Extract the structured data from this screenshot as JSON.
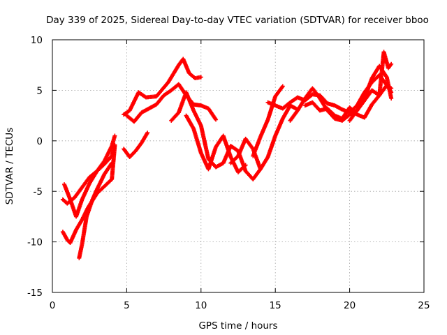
{
  "chart_data": {
    "type": "scatter",
    "title": "Day 339 of 2025, Sidereal Day-to-day VTEC variation (SDTVAR) for receiver bboo",
    "xlabel": "GPS time / hours",
    "ylabel": "SDTVAR / TECUs",
    "xlim": [
      0,
      25
    ],
    "ylim": [
      -15,
      10
    ],
    "xticks": [
      0,
      5,
      10,
      15,
      20,
      25
    ],
    "yticks": [
      -15,
      -10,
      -5,
      0,
      5,
      10
    ],
    "xtick_labels": [
      "0",
      "5",
      "10",
      "15",
      "20",
      "25"
    ],
    "ytick_labels": [
      "-15",
      "-10",
      "-5",
      "0",
      "5",
      "10"
    ],
    "grid": true,
    "marker": "+",
    "color": "#ff0000",
    "series": [
      {
        "x": [
          0.8,
          1.2,
          1.6,
          2.0,
          2.5,
          3.0,
          3.5,
          4.0,
          4.2
        ],
        "y": [
          -4.3,
          -5.8,
          -7.5,
          -5.8,
          -4.2,
          -3.0,
          -2.3,
          -1.5,
          -0.4
        ]
      },
      {
        "x": [
          0.7,
          1.0,
          1.5,
          2.0,
          2.5,
          3.0,
          3.5,
          4.0,
          4.2
        ],
        "y": [
          -5.8,
          -6.2,
          -5.6,
          -4.6,
          -3.6,
          -3.0,
          -2.0,
          -0.5,
          0.5
        ]
      },
      {
        "x": [
          0.7,
          1.0,
          1.2,
          1.6,
          2.0,
          2.4,
          3.0,
          3.5,
          4.0,
          4.2
        ],
        "y": [
          -9.0,
          -9.8,
          -10.1,
          -8.8,
          -7.8,
          -6.6,
          -5.2,
          -4.5,
          -3.8,
          -0.5
        ]
      },
      {
        "x": [
          1.8,
          2.0,
          2.3,
          2.7,
          3.0,
          3.5,
          4.0
        ],
        "y": [
          -11.6,
          -10.2,
          -7.5,
          -5.8,
          -4.8,
          -3.3,
          -2.2
        ]
      },
      {
        "x": [
          4.8,
          5.2,
          5.8,
          6.3,
          7.0,
          7.8,
          8.5,
          8.8,
          9.2,
          9.6,
          10.0
        ],
        "y": [
          2.6,
          3.0,
          4.8,
          4.3,
          4.4,
          5.8,
          7.5,
          8.1,
          6.7,
          6.2,
          6.3
        ]
      },
      {
        "x": [
          5.0,
          5.5,
          6.0,
          6.5,
          7.0,
          7.5,
          8.0,
          8.5,
          9.0,
          9.5,
          10.0,
          10.5,
          11.0
        ],
        "y": [
          2.5,
          1.9,
          2.8,
          3.2,
          3.6,
          4.5,
          5.0,
          5.6,
          4.5,
          3.6,
          3.5,
          3.2,
          2.1
        ]
      },
      {
        "x": [
          4.8,
          5.2,
          5.6,
          6.0,
          6.4
        ],
        "y": [
          -0.8,
          -1.6,
          -1.0,
          -0.2,
          0.8
        ]
      },
      {
        "x": [
          8.0,
          8.5,
          9.0,
          9.5,
          10.0,
          10.5,
          11.0,
          11.5,
          12.0,
          12.5,
          13.0,
          13.5,
          14.0
        ],
        "y": [
          2.0,
          2.8,
          4.8,
          3.0,
          1.5,
          -1.8,
          -2.6,
          -2.2,
          -0.5,
          -1.0,
          -3.0,
          -3.8,
          -2.8
        ]
      },
      {
        "x": [
          9.0,
          9.5,
          10.0,
          10.5,
          11.0,
          11.5,
          12.0,
          12.5,
          13.0
        ],
        "y": [
          2.5,
          1.2,
          -1.2,
          -2.8,
          -0.6,
          0.5,
          -1.6,
          -3.1,
          -2.4
        ]
      },
      {
        "x": [
          12.0,
          12.5,
          13.0,
          13.5,
          14.0,
          14.5,
          15.0,
          15.5,
          16.0,
          16.5
        ],
        "y": [
          -2.2,
          -1.5,
          0.2,
          -0.8,
          -2.8,
          -1.6,
          0.5,
          2.2,
          3.5,
          3.1
        ]
      },
      {
        "x": [
          13.5,
          14.0,
          14.5,
          15.0,
          15.5
        ],
        "y": [
          -1.5,
          0.4,
          2.1,
          4.4,
          5.4
        ]
      },
      {
        "x": [
          14.5,
          15.0,
          15.5,
          16.0,
          16.5,
          17.0,
          17.5,
          18.0,
          18.5,
          19.0,
          19.5,
          20.0,
          20.5,
          21.0,
          21.5,
          22.0,
          22.5,
          22.8
        ],
        "y": [
          3.8,
          3.5,
          3.2,
          3.8,
          4.3,
          4.0,
          4.6,
          4.5,
          3.7,
          3.5,
          3.1,
          2.8,
          3.5,
          4.8,
          5.8,
          6.5,
          5.5,
          4.8
        ]
      },
      {
        "x": [
          16.0,
          16.5,
          17.0,
          17.5,
          18.0,
          18.5,
          19.0,
          19.5,
          20.0,
          20.5,
          21.0,
          21.5,
          22.0,
          22.5,
          22.8
        ],
        "y": [
          2.0,
          3.0,
          4.2,
          5.2,
          4.2,
          3.0,
          2.2,
          2.0,
          2.6,
          3.0,
          4.0,
          5.0,
          4.5,
          5.5,
          5.2
        ]
      },
      {
        "x": [
          17.0,
          17.5,
          18.0,
          18.5,
          19.0,
          19.5,
          20.0,
          20.5,
          21.0,
          21.5,
          22.0,
          22.3,
          22.6,
          22.8
        ],
        "y": [
          3.5,
          3.8,
          3.0,
          3.2,
          2.5,
          2.2,
          3.3,
          2.6,
          2.3,
          3.6,
          4.5,
          8.8,
          7.2,
          7.6
        ]
      },
      {
        "x": [
          20.0,
          20.5,
          21.0,
          21.5,
          22.0,
          22.5,
          22.8
        ],
        "y": [
          2.0,
          3.0,
          4.2,
          6.2,
          7.4,
          6.3,
          4.2
        ]
      }
    ]
  }
}
